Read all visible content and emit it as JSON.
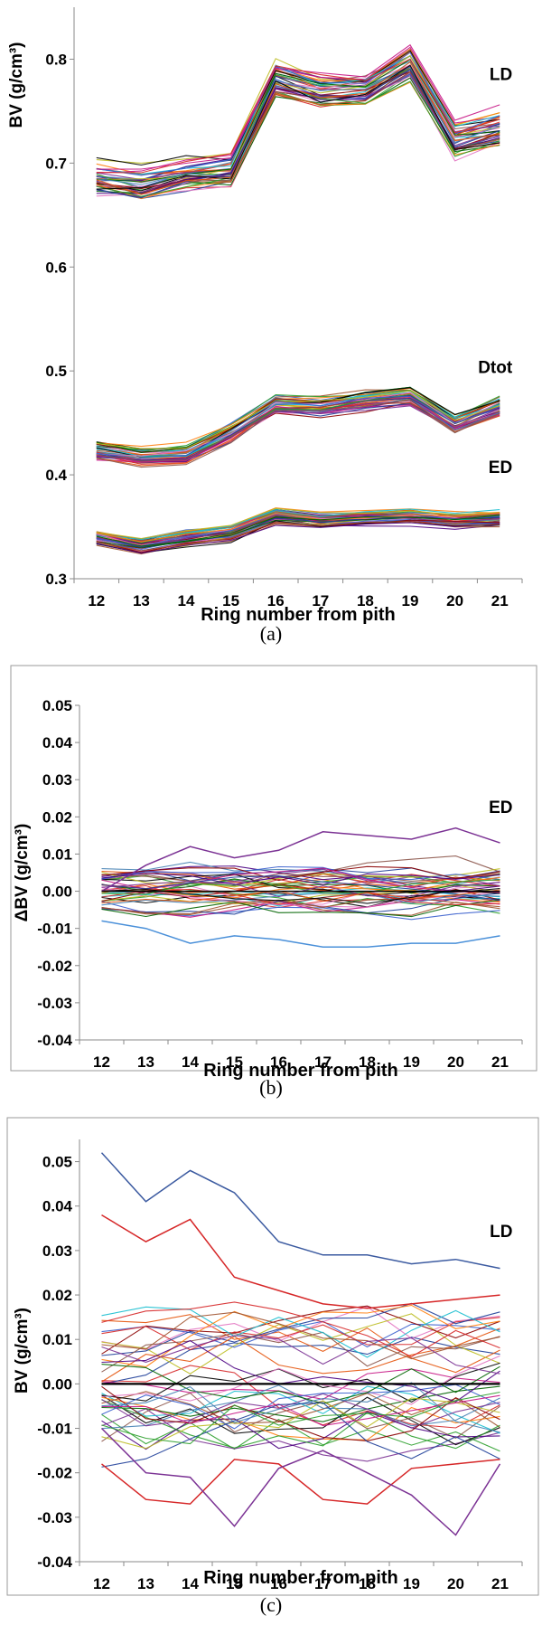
{
  "panels": [
    {
      "caption": "(a)",
      "chart_data": {
        "type": "line",
        "xlabel": "Ring number from pith",
        "ylabel": "BV (g/cm³)",
        "x": [
          12,
          13,
          14,
          15,
          16,
          17,
          18,
          19,
          20,
          21
        ],
        "ylim": [
          0.3,
          0.85
        ],
        "yticks": [
          0.3,
          0.4,
          0.5,
          0.6,
          0.7,
          0.8
        ],
        "ytick_labels": [
          "0.3",
          "0.4",
          "0.5",
          "0.6",
          "0.7",
          "0.8"
        ],
        "framed": false,
        "grid": false,
        "annotations": [
          {
            "text": "LD",
            "x": 21,
            "y": 0.78
          },
          {
            "text": "Dtot",
            "x": 21,
            "y": 0.498
          },
          {
            "text": "ED",
            "x": 21,
            "y": 0.402
          }
        ],
        "line_groups": [
          {
            "label": "LD",
            "count": 42,
            "mean": [
              0.686,
              0.68,
              0.689,
              0.693,
              0.782,
              0.77,
              0.772,
              0.797,
              0.722,
              0.734
            ],
            "spread": 0.014
          },
          {
            "label": "Dtot",
            "count": 42,
            "mean": [
              0.424,
              0.418,
              0.42,
              0.441,
              0.468,
              0.466,
              0.472,
              0.476,
              0.449,
              0.466
            ],
            "spread": 0.008
          },
          {
            "label": "ED",
            "count": 42,
            "mean": [
              0.339,
              0.331,
              0.338,
              0.343,
              0.36,
              0.356,
              0.358,
              0.359,
              0.356,
              0.358
            ],
            "spread": 0.006
          }
        ],
        "series_colors": [
          "#d62728",
          "#1f3f99",
          "#2ca02c",
          "#7b3294",
          "#e6550d",
          "#000000",
          "#8c564b",
          "#17becf",
          "#e377c2",
          "#bcbd22",
          "#3a5fcd",
          "#ff7f0e",
          "#8b0000",
          "#006400",
          "#4b0082",
          "#a0522d",
          "#c71585",
          "#4682b4"
        ]
      }
    },
    {
      "caption": "(b)",
      "chart_data": {
        "type": "line",
        "xlabel": "Ring number from pith",
        "ylabel": "ΔBV (g/cm³)",
        "x": [
          12,
          13,
          14,
          15,
          16,
          17,
          18,
          19,
          20,
          21
        ],
        "ylim": [
          -0.04,
          0.05
        ],
        "yticks": [
          -0.04,
          -0.03,
          -0.02,
          -0.01,
          0.0,
          0.01,
          0.02,
          0.03,
          0.04,
          0.05
        ],
        "ytick_labels": [
          "-0.04",
          "-0.03",
          "-0.02",
          "-0.01",
          "0.00",
          "0.01",
          "0.02",
          "0.03",
          "0.04",
          "0.05"
        ],
        "framed": true,
        "grid": false,
        "annotations": [
          {
            "text": "ED",
            "x": 21,
            "y": 0.021
          }
        ],
        "line_groups": [
          {
            "label": "ED",
            "count": 42,
            "mean": [
              0,
              0,
              0,
              0,
              0,
              0,
              0,
              0,
              0,
              0
            ],
            "spread": 0.0055
          }
        ],
        "highlighted_lines": [
          {
            "values": [
              0.0,
              0.007,
              0.012,
              0.009,
              0.011,
              0.016,
              0.015,
              0.014,
              0.017,
              0.013
            ],
            "color": "#7b3294"
          },
          {
            "values": [
              -0.008,
              -0.01,
              -0.014,
              -0.012,
              -0.013,
              -0.015,
              -0.015,
              -0.014,
              -0.014,
              -0.012
            ],
            "color": "#4a90d9"
          },
          {
            "values": [
              0.0,
              0.0,
              0.0,
              0.0,
              0.0,
              0.0,
              0.0,
              0.0,
              0.0,
              0.0
            ],
            "color": "#000000"
          }
        ],
        "series_colors": [
          "#d62728",
          "#1f3f99",
          "#2ca02c",
          "#7b3294",
          "#e6550d",
          "#000000",
          "#8c564b",
          "#17becf",
          "#e377c2",
          "#bcbd22",
          "#3a5fcd",
          "#ff7f0e",
          "#8b0000",
          "#006400",
          "#4b0082",
          "#a0522d",
          "#c71585",
          "#4682b4"
        ]
      }
    },
    {
      "caption": "(c)",
      "chart_data": {
        "type": "line",
        "xlabel": "Ring number from pith",
        "ylabel": "BV (g/cm³)",
        "x": [
          12,
          13,
          14,
          15,
          16,
          17,
          18,
          19,
          20,
          21
        ],
        "ylim": [
          -0.04,
          0.055
        ],
        "yticks": [
          -0.04,
          -0.03,
          -0.02,
          -0.01,
          0.0,
          0.01,
          0.02,
          0.03,
          0.04,
          0.05
        ],
        "ytick_labels": [
          "-0.04",
          "-0.03",
          "-0.02",
          "-0.01",
          "0.00",
          "0.01",
          "0.02",
          "0.03",
          "0.04",
          "0.05"
        ],
        "framed": true,
        "grid": false,
        "annotations": [
          {
            "text": "LD",
            "x": 21,
            "y": 0.033
          }
        ],
        "line_groups": [
          {
            "label": "LD",
            "count": 40,
            "mean": [
              0,
              0,
              0,
              0,
              0,
              0,
              0,
              0,
              0,
              0
            ],
            "spread": 0.013
          }
        ],
        "highlighted_lines": [
          {
            "values": [
              0.052,
              0.041,
              0.048,
              0.043,
              0.032,
              0.029,
              0.029,
              0.027,
              0.028,
              0.026
            ],
            "color": "#3b5aa0"
          },
          {
            "values": [
              0.038,
              0.032,
              0.037,
              0.024,
              0.021,
              0.018,
              0.017,
              0.018,
              0.019,
              0.02
            ],
            "color": "#d62728"
          },
          {
            "values": [
              -0.018,
              -0.026,
              -0.027,
              -0.017,
              -0.018,
              -0.026,
              -0.027,
              -0.019,
              -0.018,
              -0.017
            ],
            "color": "#d62728"
          },
          {
            "values": [
              -0.01,
              -0.02,
              -0.021,
              -0.032,
              -0.019,
              -0.015,
              -0.02,
              -0.025,
              -0.034,
              -0.018
            ],
            "color": "#7b3294"
          },
          {
            "values": [
              0.0,
              0.0,
              0.0,
              0.0,
              0.0,
              0.0,
              0.0,
              0.0,
              0.0,
              0.0
            ],
            "color": "#000000",
            "width": 2.2
          }
        ],
        "series_colors": [
          "#d62728",
          "#1f3f99",
          "#2ca02c",
          "#7b3294",
          "#e6550d",
          "#000000",
          "#8c564b",
          "#17becf",
          "#e377c2",
          "#bcbd22",
          "#3a5fcd",
          "#ff7f0e",
          "#8b0000",
          "#006400",
          "#4b0082",
          "#a0522d",
          "#c71585",
          "#4682b4"
        ]
      }
    }
  ]
}
